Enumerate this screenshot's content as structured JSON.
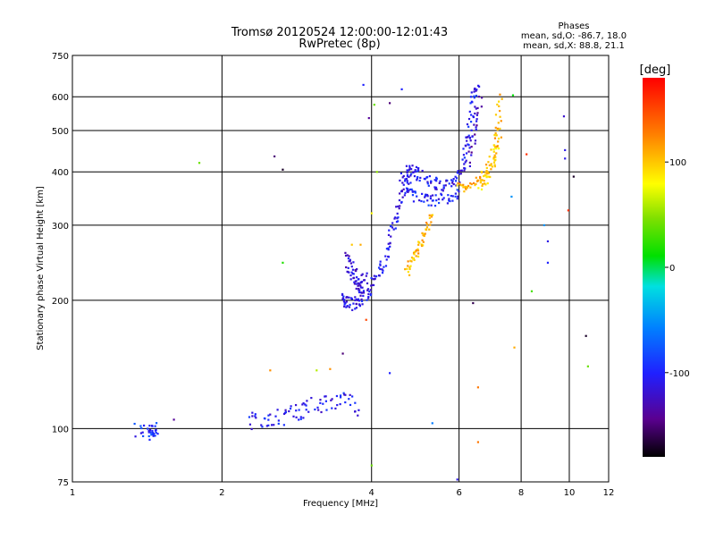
{
  "chart_data": {
    "type": "scatter",
    "title": "Tromsø 20120524 12:00:00-12:01:43",
    "subtitle": "RwPretec (8p)",
    "xlabel": "Frequency [MHz]",
    "ylabel": "Stationary phase Virtual Height [km]",
    "x_scale": "log",
    "y_scale": "log",
    "xlim": [
      1,
      12
    ],
    "ylim": [
      75,
      750
    ],
    "x_ticks": [
      1,
      2,
      4,
      6,
      8,
      10,
      12
    ],
    "y_ticks": [
      75,
      100,
      200,
      300,
      400,
      500,
      600,
      750
    ],
    "grid": true,
    "colorbar": {
      "label": "[deg]",
      "range": [
        -180,
        180
      ],
      "ticks": [
        100,
        0,
        -100
      ]
    },
    "phase_stats": {
      "heading": "Phases",
      "line1": "mean, sd,O: -86.7, 18.0",
      "line2": "mean, sd,X:  88.8, 21.1"
    },
    "series": [
      {
        "segments": [
          {
            "f": [
              1.35,
              1.42,
              1.45,
              1.47,
              1.44
            ],
            "h": [
              100,
              98,
              99,
              100,
              97
            ],
            "phase": -95,
            "spread": 0.04
          },
          {
            "f": [
              2.25,
              2.4,
              2.55,
              2.7,
              2.85,
              3.0,
              3.2,
              3.4,
              3.6,
              3.75
            ],
            "h": [
              104,
              104,
              106,
              108,
              110,
              112,
              115,
              117,
              115,
              112
            ],
            "phase": -105,
            "spread": 0.05
          },
          {
            "f": [
              3.5,
              3.55,
              3.6,
              3.7,
              3.8,
              3.9,
              4.0,
              4.1,
              4.2,
              4.3,
              4.4,
              4.5,
              4.6,
              4.7,
              4.8
            ],
            "h": [
              205,
              198,
              196,
              197,
              200,
              205,
              215,
              228,
              245,
              265,
              290,
              320,
              345,
              365,
              375
            ],
            "phase": -110,
            "spread": 0.035
          },
          {
            "f": [
              3.55,
              3.6,
              3.65,
              3.7,
              3.75,
              3.8,
              3.85,
              3.9
            ],
            "h": [
              250,
              240,
              235,
              228,
              220,
              215,
              218,
              222
            ],
            "phase": -115,
            "spread": 0.05
          },
          {
            "f": [
              4.6,
              4.7,
              4.8,
              4.9,
              5.0,
              5.2,
              5.4,
              5.6,
              5.8,
              6.0
            ],
            "h": [
              380,
              395,
              405,
              400,
              390,
              380,
              375,
              370,
              378,
              385
            ],
            "phase": -108,
            "spread": 0.03
          },
          {
            "f": [
              4.7,
              4.9,
              5.1,
              5.3,
              5.5,
              5.8,
              6.0
            ],
            "h": [
              360,
              350,
              345,
              342,
              345,
              350,
              360
            ],
            "phase": -100,
            "spread": 0.03
          },
          {
            "f": [
              6.0,
              6.1,
              6.2,
              6.3,
              6.4,
              6.45,
              6.5
            ],
            "h": [
              390,
              420,
              460,
              500,
              560,
              610,
              640
            ],
            "phase": -105,
            "spread": 0.025
          },
          {
            "f": [
              6.3,
              6.4,
              6.5,
              6.6
            ],
            "h": [
              420,
              470,
              530,
              600
            ],
            "phase": -125,
            "spread": 0.03
          },
          {
            "f": [
              4.7,
              4.8,
              4.9,
              5.0,
              5.1,
              5.2,
              5.3
            ],
            "h": [
              235,
              245,
              258,
              270,
              285,
              300,
              315
            ],
            "phase": 105,
            "spread": 0.03
          },
          {
            "f": [
              6.0,
              6.2,
              6.4,
              6.6,
              6.8,
              7.0,
              7.1,
              7.2,
              7.25
            ],
            "h": [
              370,
              365,
              372,
              385,
              400,
              430,
              470,
              530,
              610
            ],
            "phase": 108,
            "spread": 0.02
          },
          {
            "f": [
              6.6,
              6.8,
              7.0,
              7.1,
              7.2
            ],
            "h": [
              370,
              385,
              410,
              450,
              500
            ],
            "phase": 95,
            "spread": 0.03
          }
        ]
      }
    ],
    "scattered": [
      {
        "f": 1.8,
        "h": 420,
        "phase": 40
      },
      {
        "f": 2.55,
        "h": 435,
        "phase": -150
      },
      {
        "f": 2.65,
        "h": 405,
        "phase": -170
      },
      {
        "f": 2.65,
        "h": 245,
        "phase": 20
      },
      {
        "f": 3.85,
        "h": 640,
        "phase": -100
      },
      {
        "f": 3.95,
        "h": 535,
        "phase": -140
      },
      {
        "f": 4.05,
        "h": 575,
        "phase": 40
      },
      {
        "f": 4.35,
        "h": 580,
        "phase": -150
      },
      {
        "f": 4.6,
        "h": 625,
        "phase": -100
      },
      {
        "f": 4.0,
        "h": 320,
        "phase": 80
      },
      {
        "f": 3.9,
        "h": 180,
        "phase": 150
      },
      {
        "f": 3.5,
        "h": 150,
        "phase": -150
      },
      {
        "f": 4.0,
        "h": 82,
        "phase": 40
      },
      {
        "f": 5.3,
        "h": 103,
        "phase": -60
      },
      {
        "f": 5.95,
        "h": 76,
        "phase": -110
      },
      {
        "f": 6.4,
        "h": 197,
        "phase": -160
      },
      {
        "f": 6.55,
        "h": 93,
        "phase": 130
      },
      {
        "f": 6.55,
        "h": 125,
        "phase": 130
      },
      {
        "f": 7.7,
        "h": 605,
        "phase": 10
      },
      {
        "f": 7.65,
        "h": 350,
        "phase": -50
      },
      {
        "f": 7.75,
        "h": 155,
        "phase": 110
      },
      {
        "f": 8.2,
        "h": 440,
        "phase": 160
      },
      {
        "f": 8.4,
        "h": 210,
        "phase": 30
      },
      {
        "f": 8.9,
        "h": 300,
        "phase": -50
      },
      {
        "f": 9.05,
        "h": 275,
        "phase": -110
      },
      {
        "f": 9.05,
        "h": 245,
        "phase": -100
      },
      {
        "f": 9.75,
        "h": 540,
        "phase": -120
      },
      {
        "f": 9.8,
        "h": 450,
        "phase": -110
      },
      {
        "f": 9.8,
        "h": 430,
        "phase": -110
      },
      {
        "f": 9.95,
        "h": 325,
        "phase": 160
      },
      {
        "f": 10.2,
        "h": 390,
        "phase": -170
      },
      {
        "f": 10.8,
        "h": 165,
        "phase": -170
      },
      {
        "f": 10.9,
        "h": 140,
        "phase": 40
      },
      {
        "f": 2.5,
        "h": 137,
        "phase": 120
      },
      {
        "f": 3.1,
        "h": 137,
        "phase": 60
      },
      {
        "f": 3.3,
        "h": 138,
        "phase": 120
      },
      {
        "f": 3.8,
        "h": 270,
        "phase": 110
      },
      {
        "f": 3.65,
        "h": 270,
        "phase": 100
      },
      {
        "f": 4.35,
        "h": 135,
        "phase": -100
      },
      {
        "f": 4.1,
        "h": 400,
        "phase": 50
      },
      {
        "f": 1.6,
        "h": 105,
        "phase": -140
      }
    ]
  }
}
